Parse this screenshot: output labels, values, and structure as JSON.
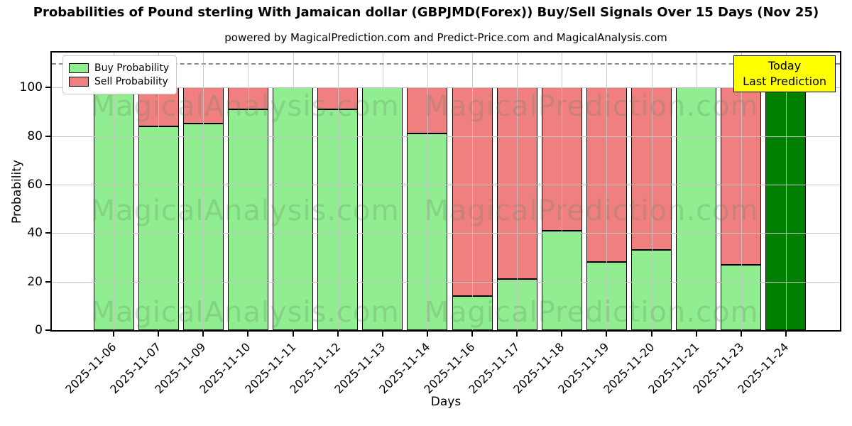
{
  "title": "Probabilities of Pound sterling With Jamaican dollar (GBPJMD(Forex)) Buy/Sell Signals Over 15 Days (Nov 25)",
  "subtitle": "powered by MagicalPrediction.com and Predict-Price.com and MagicalAnalysis.com",
  "axes": {
    "xlabel": "Days",
    "ylabel": "Probability"
  },
  "legend": {
    "items": [
      {
        "label": "Buy Probability",
        "color": "#90ee90"
      },
      {
        "label": "Sell Probability",
        "color": "#f08080"
      }
    ]
  },
  "annotation": {
    "line1": "Today",
    "line2": "Last Prediction",
    "bg_color": "#ffff00"
  },
  "watermark": {
    "texts": [
      "MagicalAnalysis.com",
      "MagicalPrediction.com"
    ],
    "color": "rgba(90,130,90,0.25)"
  },
  "colors": {
    "buy": "#90ee90",
    "sell": "#f08080",
    "today_buy": "#008000",
    "grid": "#c6c6c6",
    "dashed_line": "#8a8a8a",
    "bar_edge": "#000000"
  },
  "chart_data": {
    "type": "bar",
    "stacked": true,
    "title": "Probabilities of Pound sterling With Jamaican dollar (GBPJMD(Forex)) Buy/Sell Signals Over 15 Days (Nov 25)",
    "xlabel": "Days",
    "ylabel": "Probability",
    "categories": [
      "2025-11-06",
      "2025-11-07",
      "2025-11-09",
      "2025-11-10",
      "2025-11-11",
      "2025-11-12",
      "2025-11-13",
      "2025-11-14",
      "2025-11-16",
      "2025-11-17",
      "2025-11-18",
      "2025-11-19",
      "2025-11-20",
      "2025-11-21",
      "2025-11-23",
      "2025-11-24"
    ],
    "series": [
      {
        "name": "Buy Probability",
        "color": "#90ee90",
        "values": [
          100,
          84,
          85,
          91,
          100,
          91,
          100,
          81,
          14,
          21,
          41,
          28,
          33,
          100,
          27,
          100
        ]
      },
      {
        "name": "Sell Probability",
        "color": "#f08080",
        "values": [
          0,
          16,
          15,
          9,
          0,
          9,
          0,
          19,
          86,
          79,
          59,
          72,
          67,
          0,
          73,
          0
        ]
      }
    ],
    "today": {
      "category": "2025-11-24",
      "color": "#008000",
      "label": "Today Last Prediction"
    },
    "yticks": [
      0,
      20,
      40,
      60,
      80,
      100
    ],
    "ylim": [
      0,
      114.4
    ],
    "dashed_hline": 110,
    "grid": true,
    "legend_position": "upper-left"
  }
}
